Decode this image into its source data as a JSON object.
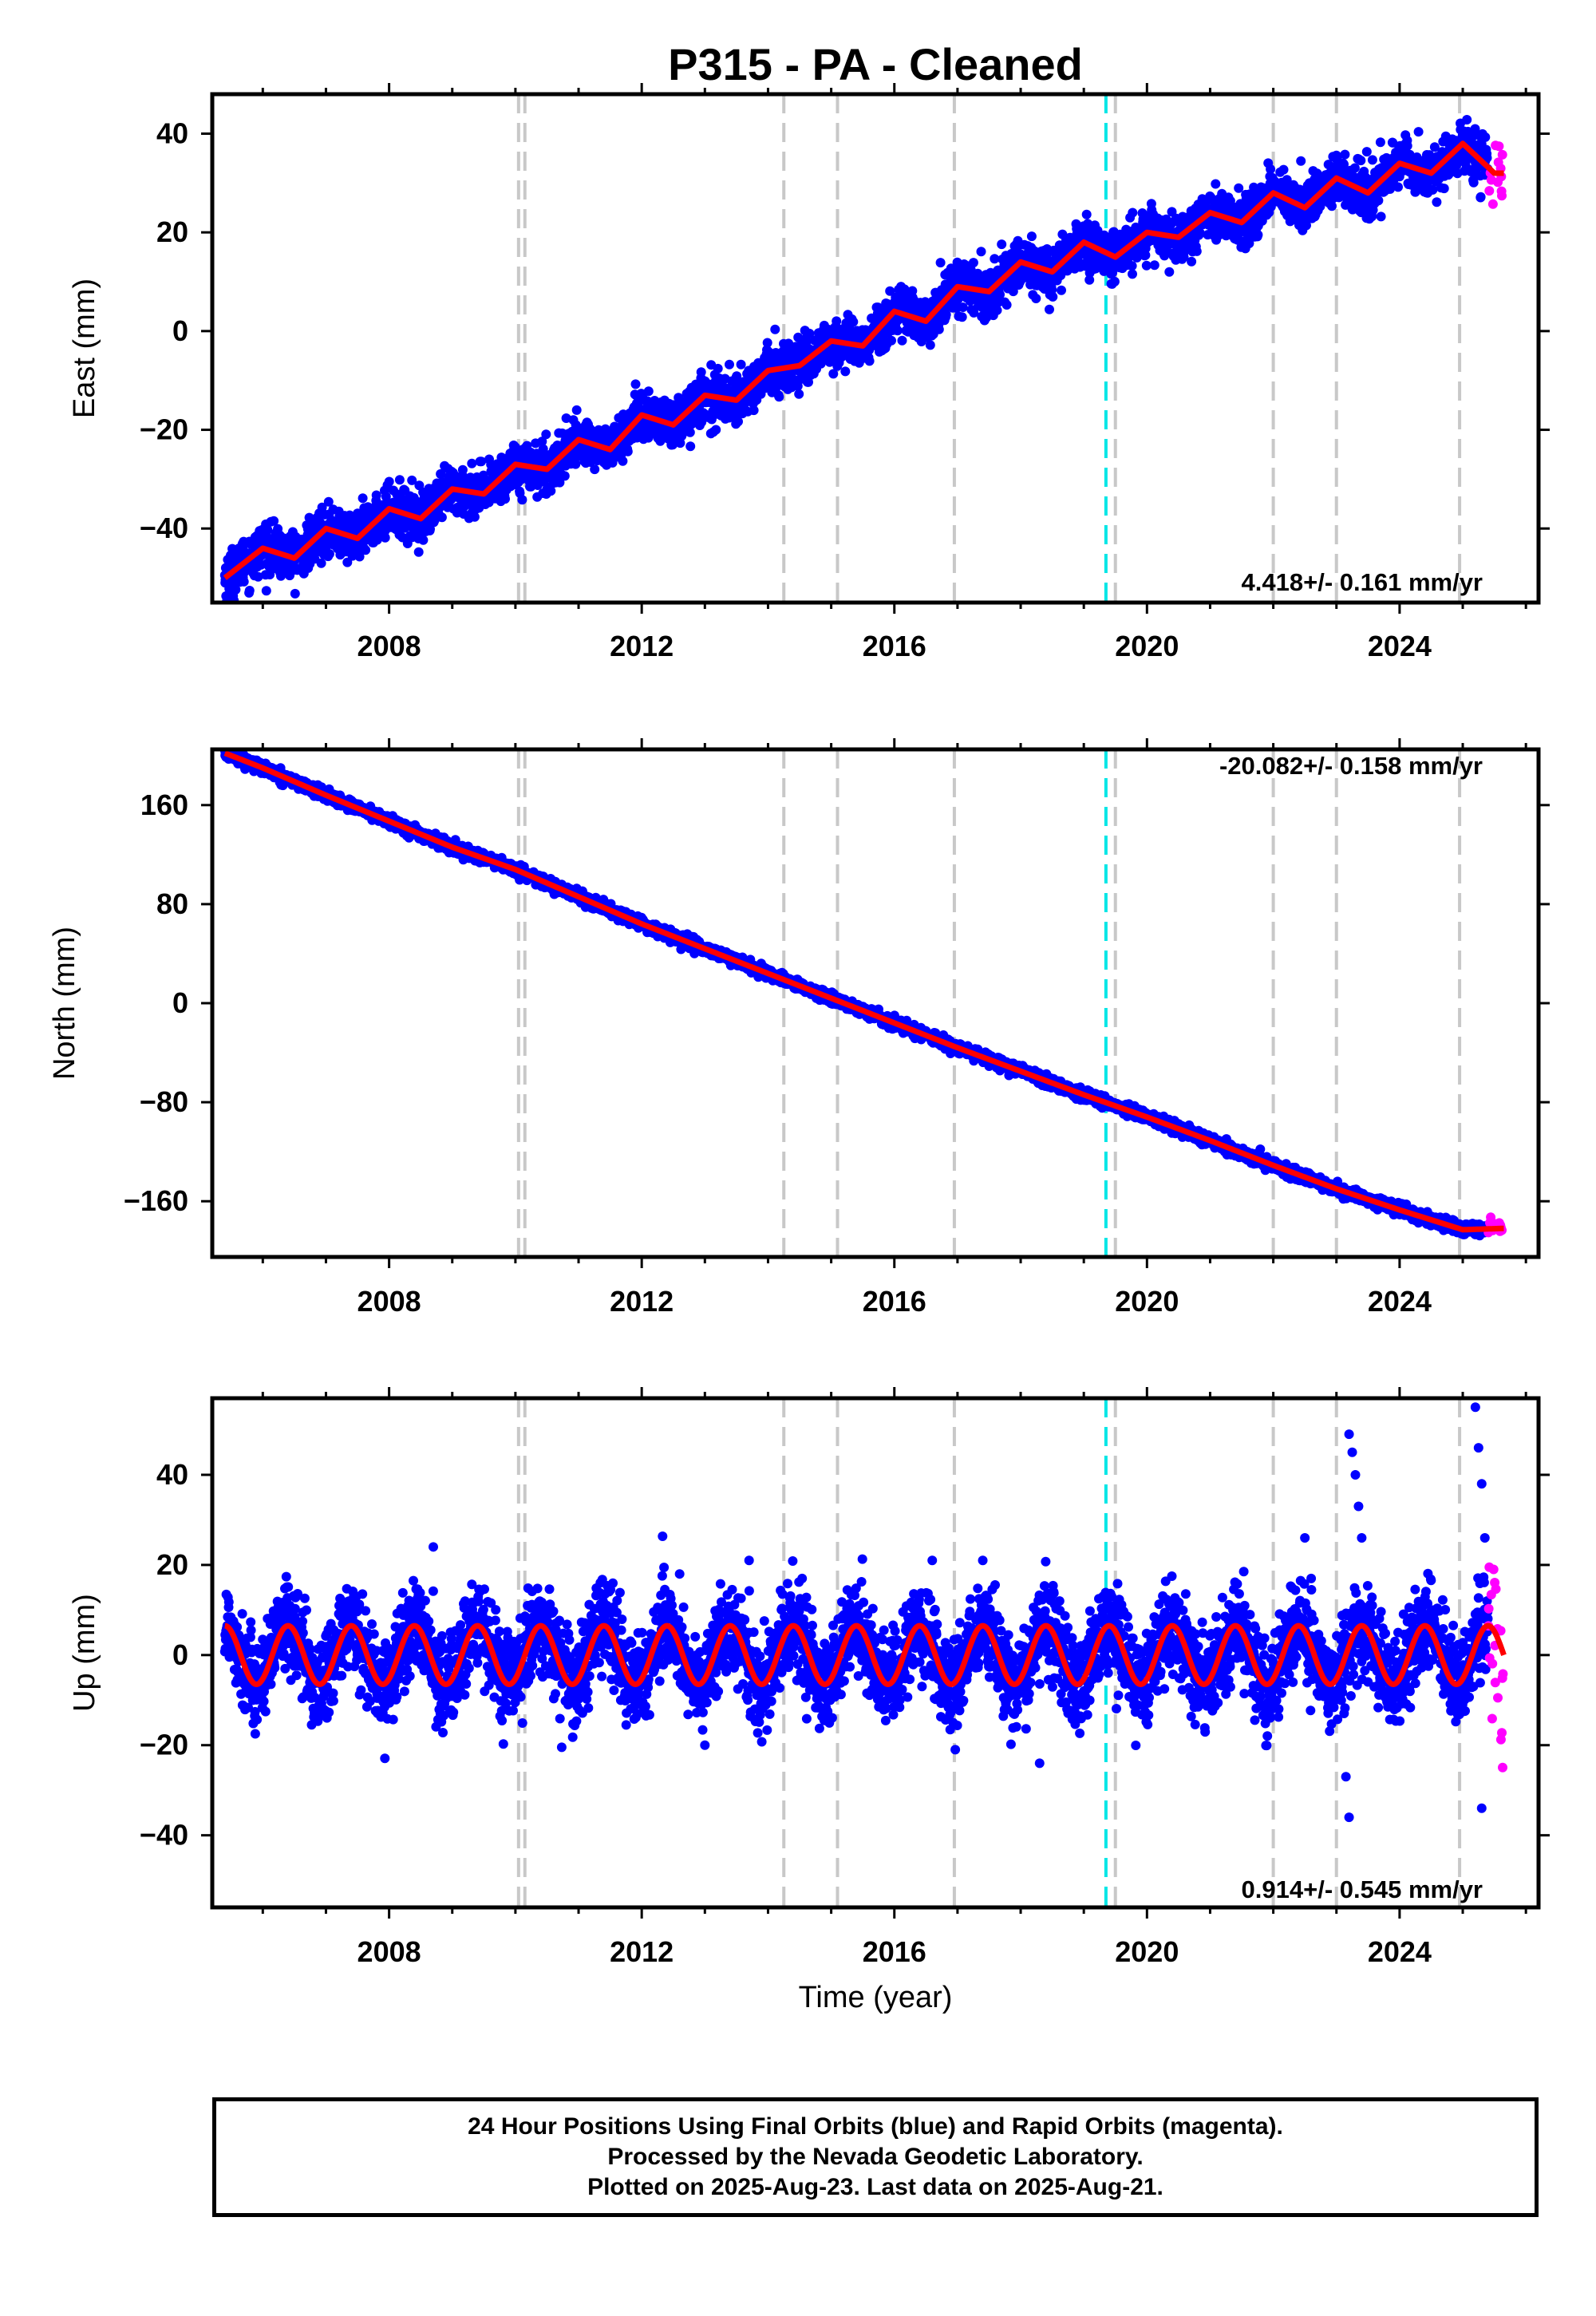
{
  "title": "P315  - PA - Cleaned",
  "footer": {
    "line1": "24 Hour Positions Using Final Orbits (blue) and Rapid Orbits (magenta).",
    "line2": "Processed by the Nevada Geodetic Laboratory.",
    "line3": "Plotted on 2025-Aug-23. Last data on 2025-Aug-21."
  },
  "colors": {
    "final_orbits": "#0000ff",
    "rapid_orbits": "#ff00ff",
    "model_fit": "#ff0000",
    "event_line": "#c8c8c8",
    "antenna_change_line": "#00e6e6"
  },
  "chart_data": [
    {
      "type": "scatter",
      "panel": "east",
      "ylabel": "East (mm)",
      "xlabel": "",
      "xlim": [
        2005.2,
        2026.2
      ],
      "ylim": [
        -55,
        48
      ],
      "xticks": [
        2008,
        2012,
        2016,
        2020,
        2024
      ],
      "yticks": [
        -40,
        -20,
        0,
        20,
        40
      ],
      "rate_label": "4.418+/- 0.161 mm/yr",
      "data_start": 2005.4,
      "final_end": 2025.4,
      "rapid_end": 2025.64,
      "series": [
        {
          "name": "Final Orbits",
          "color": "#0000ff",
          "marker": "dot"
        },
        {
          "name": "Rapid Orbits",
          "color": "#ff00ff",
          "marker": "dot"
        },
        {
          "name": "Model",
          "color": "#ff0000",
          "marker": "line"
        }
      ],
      "model": {
        "x": [
          2005.4,
          2006.0,
          2006.5,
          2007.0,
          2007.5,
          2008.0,
          2008.5,
          2009.0,
          2009.5,
          2010.0,
          2010.5,
          2011.0,
          2011.5,
          2012.0,
          2012.5,
          2013.0,
          2013.5,
          2014.0,
          2014.5,
          2015.0,
          2015.5,
          2016.0,
          2016.5,
          2017.0,
          2017.5,
          2018.0,
          2018.5,
          2019.0,
          2019.5,
          2020.0,
          2020.5,
          2021.0,
          2021.5,
          2022.0,
          2022.5,
          2023.0,
          2023.5,
          2024.0,
          2024.5,
          2025.0,
          2025.5
        ],
        "y": [
          -50,
          -44,
          -46,
          -40,
          -42,
          -36,
          -38,
          -32,
          -33,
          -27,
          -28,
          -22,
          -24,
          -17,
          -19,
          -13,
          -14,
          -8,
          -7,
          -2,
          -3,
          4,
          2,
          9,
          8,
          14,
          12,
          18,
          15,
          20,
          19,
          24,
          22,
          28,
          25,
          31,
          28,
          34,
          32,
          38,
          32
        ]
      },
      "noise": 2.4
    },
    {
      "type": "scatter",
      "panel": "north",
      "ylabel": "North (mm)",
      "xlabel": "",
      "xlim": [
        2005.2,
        2026.2
      ],
      "ylim": [
        -205,
        205
      ],
      "xticks": [
        2008,
        2012,
        2016,
        2020,
        2024
      ],
      "yticks": [
        -160,
        -80,
        0,
        80,
        160
      ],
      "rate_label": "-20.082+/- 0.158 mm/yr",
      "data_start": 2005.4,
      "final_end": 2025.4,
      "rapid_end": 2025.64,
      "series": [
        {
          "name": "Final Orbits",
          "color": "#0000ff",
          "marker": "dot"
        },
        {
          "name": "Rapid Orbits",
          "color": "#ff00ff",
          "marker": "dot"
        },
        {
          "name": "Model",
          "color": "#ff0000",
          "marker": "line"
        }
      ],
      "model": {
        "x": [
          2005.4,
          2006.0,
          2007.0,
          2008.0,
          2009.0,
          2010.0,
          2011.0,
          2012.0,
          2013.0,
          2014.0,
          2015.0,
          2016.0,
          2017.0,
          2018.0,
          2019.0,
          2020.0,
          2021.0,
          2022.0,
          2023.0,
          2024.0,
          2025.0,
          2025.6
        ],
        "y": [
          202,
          190,
          168,
          147,
          126,
          108,
          86,
          64,
          44,
          24,
          4,
          -16,
          -36,
          -55,
          -74,
          -92,
          -111,
          -131,
          -150,
          -167,
          -183,
          -182
        ]
      },
      "noise": 2.2
    },
    {
      "type": "scatter",
      "panel": "up",
      "ylabel": "Up (mm)",
      "xlabel": "Time (year)",
      "xlim": [
        2005.2,
        2026.2
      ],
      "ylim": [
        -56,
        57
      ],
      "xticks": [
        2008,
        2012,
        2016,
        2020,
        2024
      ],
      "yticks": [
        -40,
        -20,
        0,
        20,
        40
      ],
      "rate_label": "0.914+/- 0.545 mm/yr",
      "data_start": 2005.4,
      "final_end": 2025.4,
      "rapid_end": 2025.64,
      "series": [
        {
          "name": "Final Orbits",
          "color": "#0000ff",
          "marker": "dot"
        },
        {
          "name": "Rapid Orbits",
          "color": "#ff00ff",
          "marker": "dot"
        },
        {
          "name": "Model",
          "color": "#ff0000",
          "marker": "line"
        }
      ],
      "seasonal": {
        "offset": 0.0,
        "trend": 0.0,
        "amplitude": 6.5,
        "period": 1.0,
        "phase": 0.15
      },
      "noise": 5.0,
      "outliers": {
        "x": [
          2008.7,
          2012.6,
          2013.0,
          2013.7,
          2016.6,
          2017.4,
          2018.3,
          2022.5,
          2022.6,
          2023.2,
          2023.25,
          2023.3,
          2023.35,
          2023.4,
          2023.15,
          2023.2,
          2025.2,
          2025.25,
          2025.3,
          2025.35,
          2025.3
        ],
        "y": [
          24,
          18,
          -20,
          21,
          21,
          21,
          -24,
          26,
          17,
          49,
          45,
          40,
          33,
          26,
          -27,
          -36,
          55,
          46,
          38,
          26,
          -34
        ]
      }
    }
  ],
  "event_lines_gray": [
    2010.05,
    2010.15,
    2014.25,
    2015.1,
    2016.95,
    2019.5,
    2022.0,
    2023.0,
    2024.95
  ],
  "event_lines_cyan": [
    2019.35
  ]
}
